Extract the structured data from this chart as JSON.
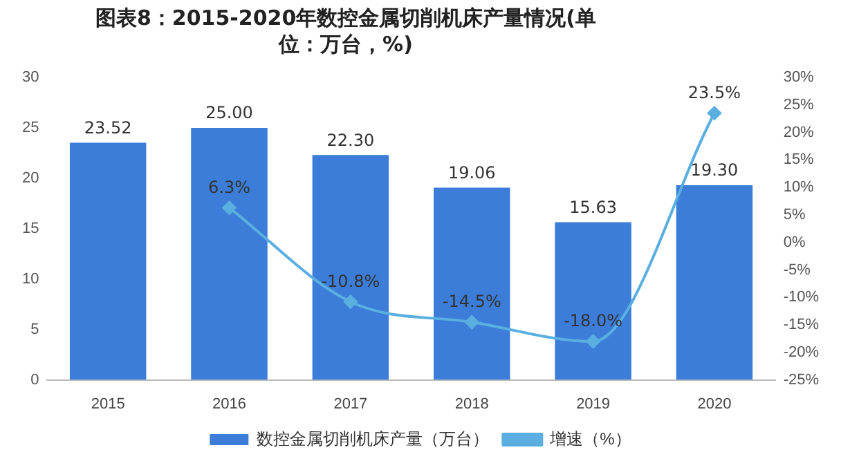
{
  "chart_data": {
    "type": "bar",
    "title": "图表8：2015-2020年数控金属切削机床产量情况(单位：万台，%)",
    "categories": [
      "2015",
      "2016",
      "2017",
      "2018",
      "2019",
      "2020"
    ],
    "series": [
      {
        "name": "数控金属切削机床产量（万台）",
        "color": "#3b7dd8",
        "values": [
          23.52,
          25.0,
          22.3,
          19.06,
          15.63,
          19.3
        ],
        "value_labels": [
          "23.52",
          "25.00",
          "22.30",
          "19.06",
          "15.63",
          "19.30"
        ]
      },
      {
        "name": "增速（%）",
        "type": "line",
        "axis": "y2",
        "color": "#5aafe0",
        "marker": "diamond",
        "values": [
          null,
          6.3,
          -10.8,
          -14.5,
          -18.0,
          23.5
        ],
        "value_labels": [
          null,
          "6.3%",
          "-10.8%",
          "-14.5%",
          "-18.0%",
          "23.5%"
        ]
      }
    ],
    "ylim": [
      0,
      30
    ],
    "yticks": [
      0,
      5,
      10,
      15,
      20,
      25,
      30
    ],
    "y2lim": [
      -25,
      30
    ],
    "y2ticks": [
      {
        "value": -25,
        "label": "-25%"
      },
      {
        "value": -20,
        "label": "-20%"
      },
      {
        "value": -15,
        "label": "-15%"
      },
      {
        "value": -10,
        "label": "-10%"
      },
      {
        "value": -5,
        "label": "-5%"
      },
      {
        "value": 0,
        "label": "0%"
      },
      {
        "value": 5,
        "label": "5%"
      },
      {
        "value": 10,
        "label": "10%"
      },
      {
        "value": 15,
        "label": "15%"
      },
      {
        "value": 20,
        "label": "20%"
      },
      {
        "value": 25,
        "label": "25%"
      },
      {
        "value": 30,
        "label": "30%"
      }
    ],
    "grid": false,
    "legend": "bottom"
  }
}
